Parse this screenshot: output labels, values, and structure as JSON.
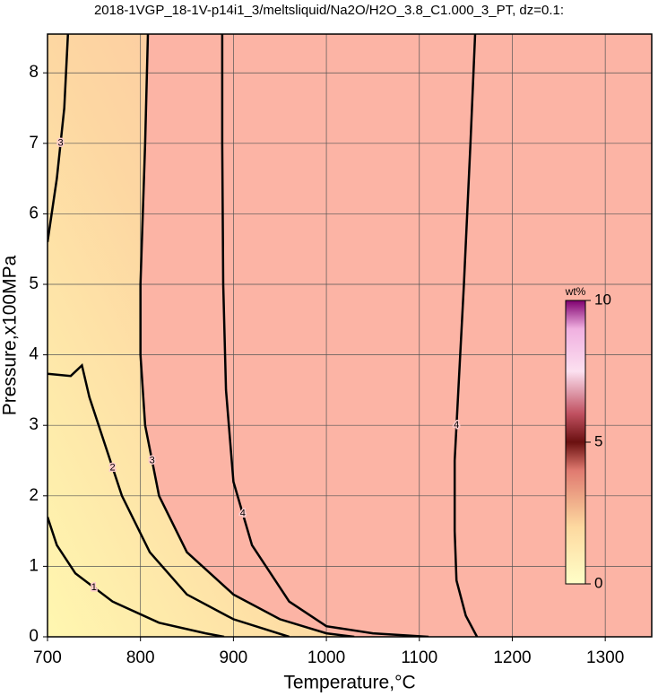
{
  "chart_data": {
    "type": "contour",
    "title": "2018-1VGP_18-1V-p14i1_3/meltsliquid/Na2O/H2O_3.8_C1.000_3_PT, dz=0.1:",
    "x_label": "Temperature,°C",
    "y_label": "Pressure,x100MPa",
    "xlim": [
      700,
      1350
    ],
    "ylim": [
      0,
      8.55
    ],
    "xticks": [
      700,
      800,
      900,
      1000,
      1100,
      1200,
      1300
    ],
    "yticks": [
      0,
      1,
      2,
      3,
      4,
      5,
      6,
      7,
      8
    ],
    "grid": true,
    "contours": [
      {
        "level": 1,
        "x": [
          700,
          710,
          730,
          770,
          820,
          870,
          890
        ],
        "y": [
          1.7,
          1.3,
          0.9,
          0.5,
          0.2,
          0.05,
          0
        ]
      },
      {
        "level": 2,
        "x": [
          700,
          725,
          737,
          745,
          760,
          780,
          810,
          850,
          900,
          960
        ],
        "y": [
          3.73,
          3.7,
          3.85,
          3.4,
          2.8,
          2.0,
          1.2,
          0.6,
          0.25,
          0
        ]
      },
      {
        "level": 3,
        "x": [
          808,
          805,
          800,
          800,
          805,
          820,
          850,
          900,
          950,
          1000,
          1030
        ],
        "y": [
          8.55,
          7,
          5,
          4,
          3,
          2,
          1.2,
          0.6,
          0.25,
          0.05,
          0
        ]
      },
      {
        "level": 3,
        "x": [
          700,
          710,
          718,
          722
        ],
        "y": [
          5.6,
          6.5,
          7.5,
          8.55
        ]
      },
      {
        "level": 4,
        "x": [
          888,
          888,
          889,
          892,
          900,
          920,
          960,
          1000,
          1050,
          1110
        ],
        "y": [
          8.55,
          7,
          5,
          3.5,
          2.2,
          1.3,
          0.5,
          0.15,
          0.05,
          0
        ]
      },
      {
        "level": 4,
        "x": [
          1160,
          1155,
          1148,
          1142,
          1138,
          1138,
          1140,
          1150,
          1162
        ],
        "y": [
          8.55,
          7,
          5,
          3.5,
          2.5,
          1.5,
          0.8,
          0.3,
          0
        ]
      }
    ],
    "colorbar": {
      "label": "wt%",
      "lim": [
        0,
        10
      ],
      "ticks": [
        0,
        5,
        10
      ]
    }
  }
}
